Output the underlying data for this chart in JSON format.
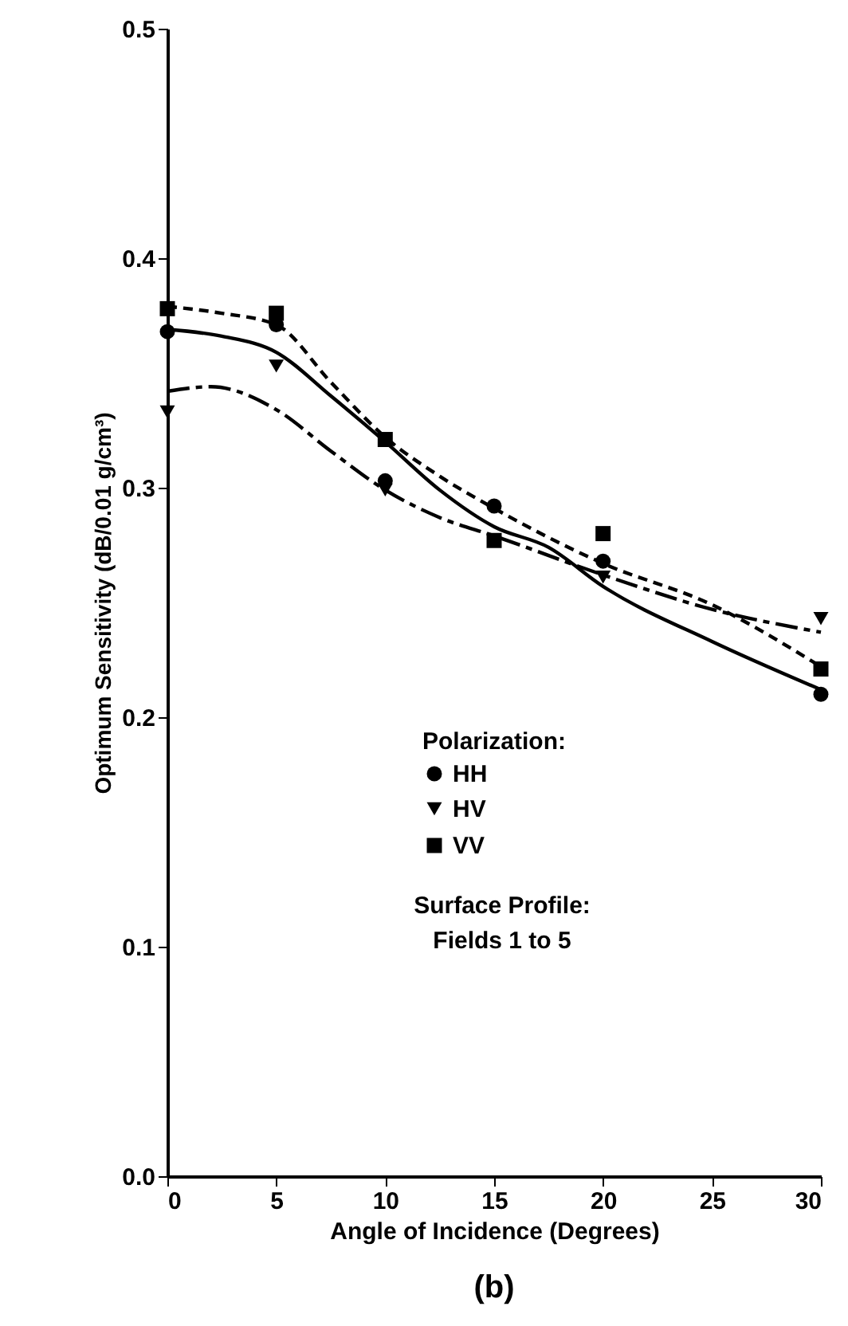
{
  "chart_data": {
    "type": "scatter",
    "xlabel": "Angle of Incidence (Degrees)",
    "ylabel": "Optimum Sensitivity (dB/0.01 g/cm³)",
    "legend_title": "Polarization:",
    "annotations": [
      "Surface Profile:",
      "Fields 1 to 5",
      "(b)"
    ],
    "xlim": [
      0,
      30
    ],
    "xticks": [
      0,
      5,
      10,
      15,
      20,
      25,
      30
    ],
    "ylim": [
      0,
      0.5
    ],
    "yticks": [
      {
        "value": 0,
        "label": "0.0"
      },
      {
        "value": 0.1,
        "label": "0.1"
      },
      {
        "value": 0.2,
        "label": "0.2"
      },
      {
        "value": 0.3,
        "label": "0.3"
      },
      {
        "value": 0.4,
        "label": "0.4"
      },
      {
        "value": 0.5,
        "label": "0.5"
      }
    ],
    "grid": false,
    "legend": "bottom",
    "series": [
      {
        "name": "HH",
        "marker": "circle",
        "color": "#000000",
        "x": [
          0,
          5,
          10,
          15,
          20,
          30
        ],
        "values": [
          0.368,
          0.371,
          0.303,
          0.292,
          0.268,
          0.21
        ]
      },
      {
        "name": "HV",
        "marker": "triangle",
        "color": "#000000",
        "x": [
          0,
          5,
          10,
          15,
          20,
          30
        ],
        "values": [
          0.333,
          0.353,
          0.299,
          null,
          0.261,
          0.243
        ]
      },
      {
        "name": "VV",
        "marker": "square",
        "color": "#000000",
        "x": [
          0,
          5,
          10,
          15,
          20,
          30
        ],
        "values": [
          0.378,
          0.376,
          0.321,
          0.277,
          0.28,
          0.221
        ]
      },
      {
        "type": "line",
        "line_style": "solid",
        "color": "#000000",
        "x": [
          0,
          2.5,
          5,
          7.5,
          10,
          12.5,
          15,
          17.5,
          20,
          25,
          30
        ],
        "values": [
          0.369,
          0.366,
          0.359,
          0.34,
          0.32,
          0.299,
          0.283,
          0.274,
          0.257,
          0.233,
          0.212
        ]
      },
      {
        "type": "line",
        "line_style": "dashed",
        "color": "#000000",
        "x": [
          0,
          2,
          5,
          7.5,
          10,
          12.5,
          15,
          20,
          25,
          30
        ],
        "values": [
          0.342,
          0.344,
          0.334,
          0.316,
          0.299,
          0.287,
          0.279,
          0.262,
          0.247,
          0.237
        ]
      },
      {
        "type": "line",
        "line_style": "dotted",
        "color": "#000000",
        "x": [
          0,
          2.5,
          5,
          7.5,
          10,
          12.5,
          15,
          20,
          25,
          30
        ],
        "values": [
          0.379,
          0.376,
          0.371,
          0.346,
          0.322,
          0.305,
          0.291,
          0.267,
          0.249,
          0.222
        ]
      }
    ]
  }
}
